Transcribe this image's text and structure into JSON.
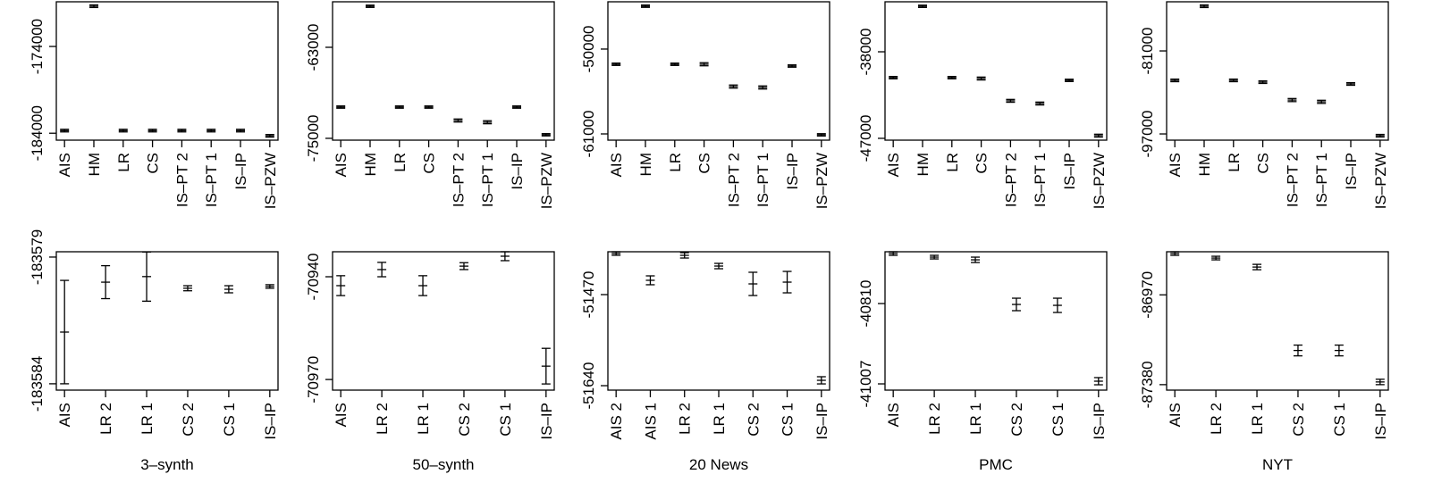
{
  "chart_data": [
    {
      "type": "errorbar",
      "categories": [
        "AIS",
        "HM",
        "LR",
        "CS",
        "IS–PT 2",
        "IS–PT 1",
        "IS–IP",
        "IS–PZW"
      ],
      "values": [
        -183700,
        -169360,
        -183700,
        -183700,
        -183700,
        -183700,
        -183700,
        -184300
      ],
      "errors": [
        150,
        150,
        150,
        150,
        150,
        150,
        150,
        150
      ],
      "ylim": [
        -184800,
        -168850
      ],
      "yticks": [
        -184000,
        -174000
      ]
    },
    {
      "type": "errorbar",
      "categories": [
        "AIS",
        "HM",
        "LR",
        "CS",
        "IS–PT 2",
        "IS–PT 1",
        "IS–IP",
        "IS–PZW"
      ],
      "values": [
        -70880,
        -57590,
        -70880,
        -70880,
        -72650,
        -72880,
        -70880,
        -74530
      ],
      "errors": [
        150,
        150,
        150,
        150,
        200,
        200,
        150,
        150
      ],
      "ylim": [
        -75240,
        -57000
      ],
      "yticks": [
        -75000,
        -63000
      ]
    },
    {
      "type": "errorbar",
      "categories": [
        "AIS",
        "HM",
        "LR",
        "CS",
        "IS–PT 2",
        "IS–PT 1",
        "IS–IP",
        "IS–PZW"
      ],
      "values": [
        -51970,
        -44440,
        -51970,
        -51970,
        -54860,
        -54980,
        -52200,
        -61120
      ],
      "errors": [
        150,
        150,
        150,
        200,
        200,
        200,
        150,
        150
      ],
      "ylim": [
        -61810,
        -43870
      ],
      "yticks": [
        -61000,
        -50000
      ]
    },
    {
      "type": "errorbar",
      "categories": [
        "AIS",
        "HM",
        "LR",
        "CS",
        "IS–PT 2",
        "IS–PT 1",
        "IS–IP",
        "IS–PZW"
      ],
      "values": [
        -40690,
        -33270,
        -40690,
        -40780,
        -43100,
        -43380,
        -40970,
        -46720
      ],
      "errors": [
        120,
        120,
        120,
        150,
        150,
        150,
        120,
        150
      ],
      "ylim": [
        -47190,
        -32800
      ],
      "yticks": [
        -47000,
        -38000
      ]
    },
    {
      "type": "errorbar",
      "categories": [
        "AIS",
        "HM",
        "LR",
        "CS",
        "IS–PT 2",
        "IS–PT 1",
        "IS–IP",
        "IS–PZW"
      ],
      "values": [
        -86680,
        -72390,
        -86680,
        -87020,
        -90470,
        -90810,
        -87370,
        -97340
      ],
      "errors": [
        250,
        250,
        250,
        250,
        300,
        300,
        250,
        250
      ],
      "ylim": [
        -98200,
        -71530
      ],
      "yticks": [
        -97000,
        -81000
      ]
    },
    {
      "type": "errorbar",
      "xlabel": "3–synth",
      "categories": [
        "AIS",
        "LR 2",
        "LR 1",
        "CS 2",
        "CS 1",
        "IS–IP"
      ],
      "values": [
        -183581.96,
        -183579.99,
        -183579.77,
        -183580.23,
        -183580.27,
        -183580.16
      ],
      "errors": [
        2.04,
        0.65,
        0.97,
        0.1,
        0.14,
        0.07
      ],
      "ylim": [
        -183584.25,
        -183578.79
      ],
      "yticks": [
        -183584,
        -183579
      ]
    },
    {
      "type": "errorbar",
      "xlabel": "50–synth",
      "categories": [
        "AIS",
        "LR 2",
        "LR 1",
        "CS 2",
        "CS 1",
        "IS–IP"
      ],
      "values": [
        -70942.6,
        -70937.9,
        -70942.6,
        -70936.9,
        -70934.0,
        -70966.1
      ],
      "errors": [
        2.9,
        2.1,
        2.9,
        1.0,
        1.3,
        5.2
      ],
      "ylim": [
        -70973.1,
        -70932.7
      ],
      "yticks": [
        -70970,
        -70940
      ]
    },
    {
      "type": "errorbar",
      "xlabel": "20 News",
      "categories": [
        "AIS 2",
        "AIS 1",
        "LR 2",
        "LR 1",
        "CS 2",
        "CS 1",
        "IS–IP"
      ],
      "values": [
        -51393.3,
        -51443.3,
        -51396.7,
        -51416.7,
        -51450,
        -51446.7,
        -51630
      ],
      "errors": [
        3.3,
        8.3,
        5,
        5,
        21.7,
        20,
        6.7
      ],
      "ylim": [
        -51648.3,
        -51390
      ],
      "yticks": [
        -51640,
        -51470
      ]
    },
    {
      "type": "errorbar",
      "xlabel": "PMC",
      "categories": [
        "AIS",
        "LR 2",
        "LR 1",
        "CS 2",
        "CS 1",
        "IS–IP"
      ],
      "values": [
        -40687.4,
        -40696.2,
        -40702.8,
        -40812.2,
        -40814.4,
        -41000.4
      ],
      "errors": [
        4.4,
        4.4,
        6.6,
        15.3,
        17.5,
        8.8
      ],
      "ylim": [
        -41022.3,
        -40683
      ],
      "yticks": [
        -41007,
        -40810
      ]
    },
    {
      "type": "errorbar",
      "xlabel": "NYT",
      "categories": [
        "AIS",
        "LR 2",
        "LR 1",
        "CS 2",
        "CS 1",
        "IS–IP"
      ],
      "values": [
        -86781.4,
        -86802,
        -86843,
        -87224,
        -87224,
        -87367.7
      ],
      "errors": [
        8.2,
        8.2,
        12.3,
        24.6,
        24.6,
        12.3
      ],
      "ylim": [
        -87405,
        -86773.2
      ],
      "yticks": [
        -87380,
        -86970
      ]
    }
  ]
}
